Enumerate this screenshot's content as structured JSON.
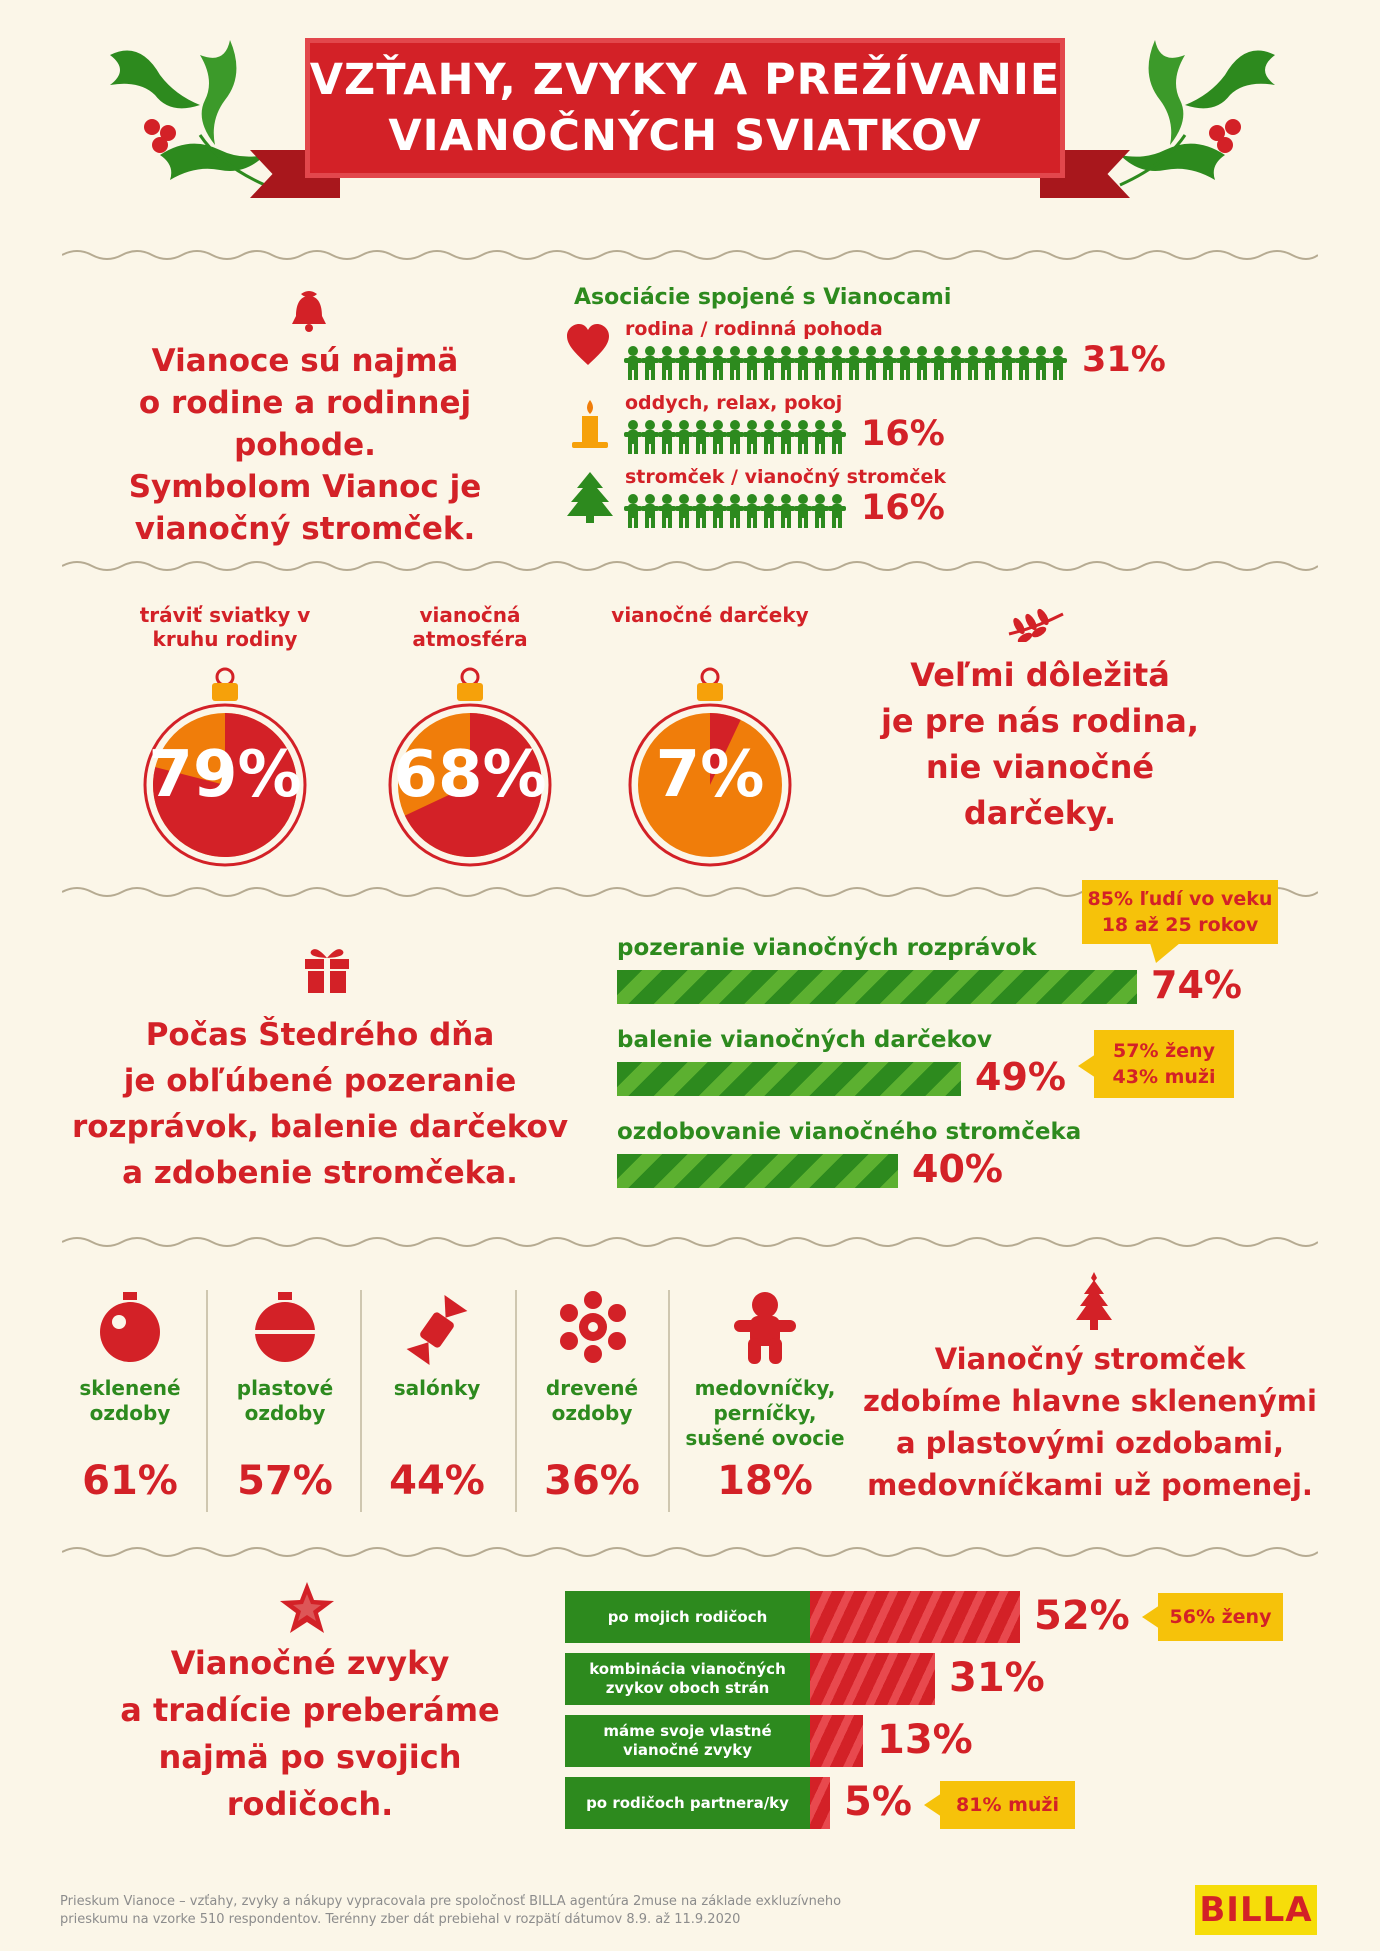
{
  "title": {
    "line1": "VZŤAHY, ZVYKY A PREŽÍVANIE",
    "line2": "VIANOČNÝCH SVIATKOV"
  },
  "section1": {
    "text": [
      "Vianoce sú najmä",
      "o rodine a rodinnej pohode.",
      "Symbolom Vianoc je",
      "vianočný stromček."
    ],
    "chart_title": "Asociácie spojené s Vianocami"
  },
  "section2": {
    "text": [
      "Veľmi dôležitá",
      "je pre nás rodina,",
      "nie vianočné",
      "darčeky."
    ]
  },
  "section3": {
    "text": [
      "Počas Štedrého dňa",
      "je obľúbené pozeranie",
      "rozprávok, balenie darčekov",
      "a zdobenie stromčeka."
    ],
    "callout1": [
      "85% ľudí vo veku",
      "18 až 25 rokov"
    ],
    "callout2": [
      "57% ženy",
      "43% muži"
    ]
  },
  "section4": {
    "text": [
      "Vianočný stromček",
      "zdobíme hlavne sklenenými",
      "a plastovými ozdobami,",
      "medovníčkami už pomenej."
    ]
  },
  "section5": {
    "text": [
      "Vianočné zvyky",
      "a tradície preberáme",
      "najmä po svojich",
      "rodičoch."
    ],
    "callout1": "56% ženy",
    "callout2": "81% muži"
  },
  "footer": {
    "line1": "Prieskum Vianoce – vzťahy, zvyky a nákupy vypracovala pre spoločnosť BILLA agentúra 2muse na základe exkluzívneho",
    "line2": "prieskumu na vzorke 510 respondentov. Terénny zber dát prebiehal v rozpätí dátumov 8.9. až 11.9.2020",
    "logo": "BILLA"
  },
  "colors": {
    "red": "#d32127",
    "green": "#2d8a1e",
    "orange": "#f07d0a",
    "yellow": "#f6c20a",
    "background": "#fbf6e8"
  },
  "icons": [
    "holly-icon",
    "bell-icon",
    "heart-icon",
    "candle-icon",
    "tree-icon",
    "branch-icon",
    "gift-icon",
    "bauble-icon",
    "candy-icon",
    "snowflake-icon",
    "gingerbread-icon",
    "star-icon"
  ],
  "chart_data": [
    {
      "type": "bar",
      "title": "Asociácie spojené s Vianocami",
      "categories": [
        "rodina / rodinná pohoda",
        "oddych, relax, pokoj",
        "stromček / vianočný stromček"
      ],
      "values": [
        31,
        16,
        16
      ],
      "labels": [
        "31%",
        "16%",
        "16%"
      ],
      "unit": "%"
    },
    {
      "type": "pie",
      "categories": [
        "tráviť sviatky v kruhu rodiny",
        "vianočná atmosféra",
        "vianočné darčeky"
      ],
      "values": [
        79,
        68,
        7
      ],
      "labels": [
        "79%",
        "68%",
        "7%"
      ],
      "unit": "%"
    },
    {
      "type": "bar",
      "categories": [
        "pozeranie vianočných rozprávok",
        "balenie vianočných darčekov",
        "ozdobovanie vianočného stromčeka"
      ],
      "values": [
        74,
        49,
        40
      ],
      "labels": [
        "74%",
        "49%",
        "40%"
      ],
      "unit": "%"
    },
    {
      "type": "bar",
      "categories": [
        "sklenené ozdoby",
        "plastové ozdoby",
        "salónky",
        "drevené ozdoby",
        "medovníčky, perníčky, sušené ovocie"
      ],
      "values": [
        61,
        57,
        44,
        36,
        18
      ],
      "labels": [
        "61%",
        "57%",
        "44%",
        "36%",
        "18%"
      ],
      "unit": "%"
    },
    {
      "type": "bar",
      "categories": [
        "po mojich rodičoch",
        "kombinácia vianočných zvykov oboch strán",
        "máme svoje vlastné vianočné zvyky",
        "po rodičoch partnera/ky"
      ],
      "values": [
        52,
        31,
        13,
        5
      ],
      "labels": [
        "52%",
        "31%",
        "13%",
        "5%"
      ],
      "unit": "%"
    }
  ]
}
